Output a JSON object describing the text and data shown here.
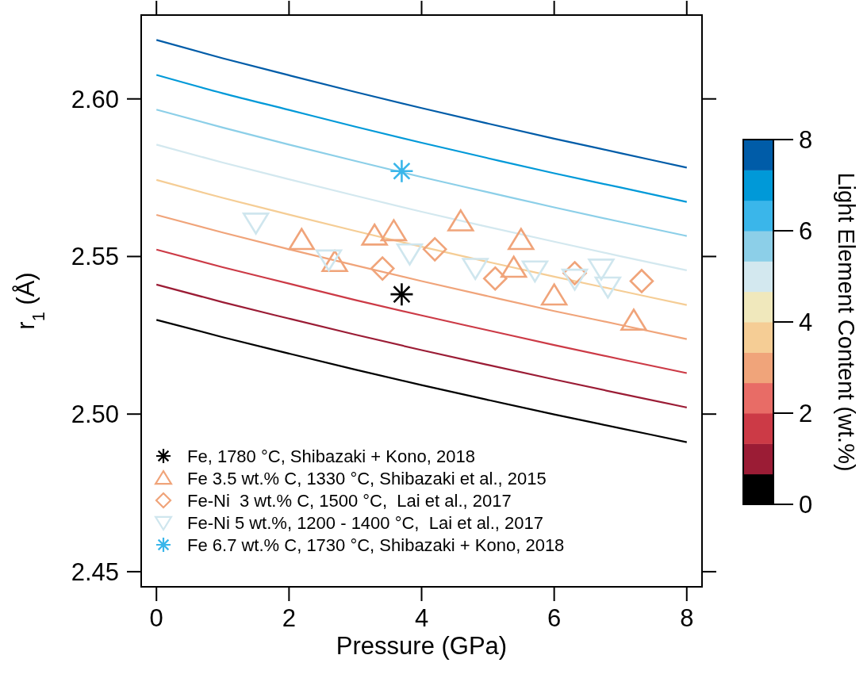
{
  "chart_data": {
    "type": "line",
    "xlabel": "Pressure (GPa)",
    "ylabel": "r$_{1}$ (Å)",
    "clabel": "Light Element Content (wt.%)",
    "xlim": [
      -0.23,
      8.23
    ],
    "xticks": [
      0,
      2,
      4,
      6,
      8
    ],
    "ylim": [
      2.4452,
      2.6266
    ],
    "yticks": [
      2.45,
      {
        "value": 2.5,
        "label": "2.50"
      },
      2.55,
      {
        "value": 2.6,
        "label": "2.60"
      }
    ],
    "clim": [
      0,
      8
    ],
    "cticks": [
      0,
      2,
      4,
      6,
      8
    ],
    "legend": "bottom left",
    "grid": false,
    "series": [
      {
        "color": "#005ca8",
        "x": [
          0,
          1,
          2,
          3,
          4,
          5,
          6,
          7,
          8
        ],
        "values": [
          2.6187,
          2.6129,
          2.6075,
          2.6022,
          2.5971,
          2.5922,
          2.5874,
          2.5828,
          2.5782
        ]
      },
      {
        "color": "#0099d8",
        "x": [
          0,
          1,
          2,
          3,
          4,
          5,
          6,
          7,
          8
        ],
        "values": [
          2.6076,
          2.6018,
          2.5965,
          2.5912,
          2.5861,
          2.5812,
          2.5764,
          2.5719,
          2.5673
        ]
      },
      {
        "color": "#8ccfe8",
        "x": [
          0,
          1,
          2,
          3,
          4,
          5,
          6,
          7,
          8
        ],
        "values": [
          2.5966,
          2.5909,
          2.5855,
          2.5803,
          2.5752,
          2.5704,
          2.5656,
          2.561,
          2.5565
        ]
      },
      {
        "color": "#d3e8ef",
        "x": [
          0,
          1,
          2,
          3,
          4,
          5,
          6,
          7,
          8
        ],
        "values": [
          2.5855,
          2.5798,
          2.5745,
          2.5693,
          2.5642,
          2.5594,
          2.5547,
          2.5501,
          2.5456
        ]
      },
      {
        "color": "#f5cd95",
        "x": [
          0,
          1,
          2,
          3,
          4,
          5,
          6,
          7,
          8
        ],
        "values": [
          2.5743,
          2.5686,
          2.5633,
          2.5581,
          2.5531,
          2.5483,
          2.5436,
          2.5391,
          2.5346
        ]
      },
      {
        "color": "#f0a47a",
        "x": [
          0,
          1,
          2,
          3,
          4,
          5,
          6,
          7,
          8
        ],
        "values": [
          2.5632,
          2.5576,
          2.5523,
          2.5472,
          2.5422,
          2.5374,
          2.5327,
          2.5283,
          2.5238
        ]
      },
      {
        "color": "#cc3a46",
        "x": [
          0,
          1,
          2,
          3,
          4,
          5,
          6,
          7,
          8
        ],
        "values": [
          2.5522,
          2.5466,
          2.5414,
          2.5362,
          2.5313,
          2.5266,
          2.5219,
          2.5174,
          2.513
        ]
      },
      {
        "color": "#9b1c35",
        "x": [
          0,
          1,
          2,
          3,
          4,
          5,
          6,
          7,
          8
        ],
        "values": [
          2.5411,
          2.5355,
          2.5303,
          2.5252,
          2.5203,
          2.5156,
          2.511,
          2.5065,
          2.5021
        ]
      },
      {
        "color": "#000000",
        "x": [
          0,
          1,
          2,
          3,
          4,
          5,
          6,
          7,
          8
        ],
        "values": [
          2.5299,
          2.5244,
          2.5192,
          2.5141,
          2.5092,
          2.5045,
          2.4999,
          2.4955,
          2.4911
        ]
      },
      {
        "type": "scatter",
        "name": "Fe, 1780 °C, Shibazaki + Kono, 2018",
        "marker": "cross",
        "color": "#000000",
        "x": [
          3.7
        ],
        "values": [
          2.538
        ]
      },
      {
        "type": "scatter",
        "name": "Fe 3.5 wt.% C, 1330 °C, Shibazaki et al., 2015",
        "marker": "triangle",
        "color": "#f0a47a",
        "x": [
          2.19,
          2.69,
          3.29,
          3.58,
          4.59,
          5.39,
          5.5,
          6.0,
          7.2
        ],
        "values": [
          2.5552,
          2.5482,
          2.5566,
          2.558,
          2.5611,
          2.5464,
          2.5552,
          2.5376,
          2.5296
        ]
      },
      {
        "type": "scatter",
        "name": "Fe-Ni  3 wt.% C, 1500 °C,  Lai et al., 2017",
        "marker": "diamond",
        "color": "#f0a47a",
        "x": [
          3.41,
          4.2,
          5.11,
          6.31,
          7.32
        ],
        "values": [
          2.5462,
          2.5523,
          2.543,
          2.5447,
          2.5422
        ]
      },
      {
        "type": "scatter",
        "name": "Fe-Ni 5 wt.%, 1200 - 1400 °C,  Lai et al., 2017",
        "marker": "triangle-down",
        "color": "#cfe6ee",
        "x": [
          1.5,
          2.6,
          3.82,
          4.81,
          5.71,
          6.31,
          6.71,
          6.81
        ],
        "values": [
          2.5608,
          2.5491,
          2.551,
          2.5464,
          2.5456,
          2.543,
          2.5462,
          2.5405
        ]
      },
      {
        "type": "scatter",
        "name": "Fe 6.7 wt.% C, 1730 °C, Shibazaki + Kono, 2018",
        "marker": "cross",
        "color": "#3ab6ea",
        "x": [
          3.7
        ],
        "values": [
          2.5771
        ]
      }
    ]
  }
}
